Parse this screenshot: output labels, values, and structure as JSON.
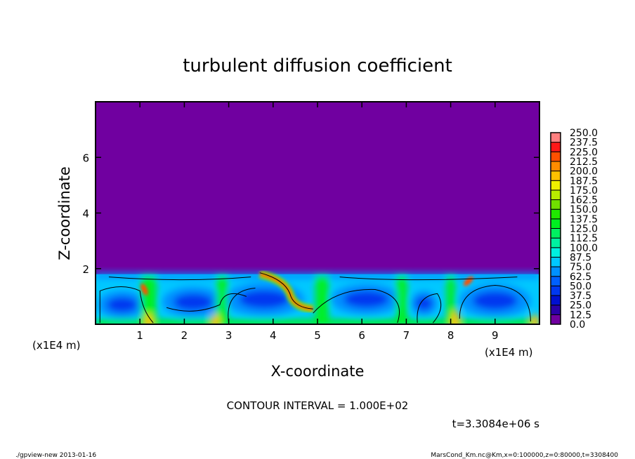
{
  "chart_data": {
    "type": "heatmap",
    "title": "turbulent diffusion coefficient",
    "xlabel": "X-coordinate",
    "ylabel": "Z-coordinate",
    "x_unit": "(x1E4 m)",
    "y_unit": "(x1E4 m)",
    "xlim": [
      0,
      10
    ],
    "ylim": [
      0,
      8
    ],
    "xticks": [
      "1",
      "2",
      "3",
      "4",
      "5",
      "6",
      "7",
      "8",
      "9"
    ],
    "yticks": [
      "2",
      "4",
      "6"
    ],
    "xtick_values": [
      1,
      2,
      3,
      4,
      5,
      6,
      7,
      8,
      9
    ],
    "ytick_values": [
      2,
      4,
      6
    ],
    "turbulent_layer_top": 1.8,
    "colorbar": {
      "levels": [
        "0.0",
        "12.5",
        "25.0",
        "37.5",
        "50.0",
        "62.5",
        "75.0",
        "87.5",
        "100.0",
        "112.5",
        "125.0",
        "137.5",
        "150.0",
        "162.5",
        "175.0",
        "187.5",
        "200.0",
        "212.5",
        "225.0",
        "237.5",
        "250.0"
      ],
      "colors": [
        "#7000a0",
        "#2a00a8",
        "#0010d0",
        "#0038f0",
        "#0060ff",
        "#0090ff",
        "#00c8ff",
        "#00f0e0",
        "#00f0a0",
        "#00f060",
        "#00f020",
        "#20e800",
        "#70e000",
        "#b8ec00",
        "#f0f000",
        "#ffc000",
        "#ff8c00",
        "#ff5000",
        "#ff1818",
        "#ff8080"
      ]
    },
    "contour_interval": "CONTOUR INTERVAL = 1.000E+02",
    "time_label": "t=3.3084e+06 s"
  },
  "footer": {
    "left": "./gpview-new  2013-01-16",
    "right": "MarsCond_Km.nc@Km,x=0:100000,z=0:80000,t=3308400"
  }
}
